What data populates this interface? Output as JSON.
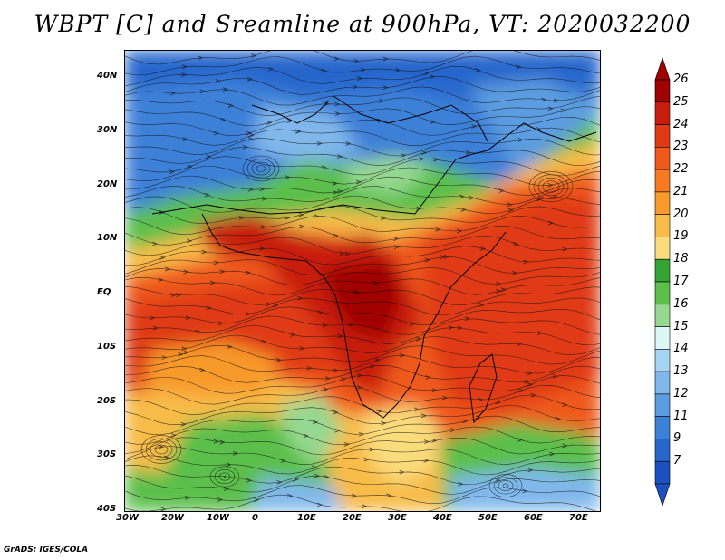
{
  "title": "WBPT [C] and Sreamline at 900hPa, VT: 2020032200",
  "credit": "GrADS: IGES/COLA",
  "axes": {
    "lon_labels": [
      "30W",
      "20W",
      "10W",
      "0",
      "10E",
      "20E",
      "30E",
      "40E",
      "50E",
      "60E",
      "70E"
    ],
    "lat_labels": [
      "40N",
      "30N",
      "20N",
      "10N",
      "EQ",
      "10S",
      "20S",
      "30S",
      "40S"
    ]
  },
  "colorbar": {
    "labels": [
      "26",
      "25",
      "24",
      "23",
      "22",
      "21",
      "20",
      "19",
      "18",
      "17",
      "16",
      "15",
      "14",
      "13",
      "12",
      "11",
      "9",
      "7"
    ],
    "colors": [
      "#a00000",
      "#c81c0c",
      "#e03a14",
      "#ef5a1c",
      "#f57a22",
      "#f89a2c",
      "#f8bc48",
      "#fadc7c",
      "#34a434",
      "#5cbf4c",
      "#96d890",
      "#dcf6f4",
      "#a8d4f4",
      "#80b8ec",
      "#5c9ce0",
      "#3c80d8",
      "#2866cc",
      "#1c50c0"
    ]
  }
}
